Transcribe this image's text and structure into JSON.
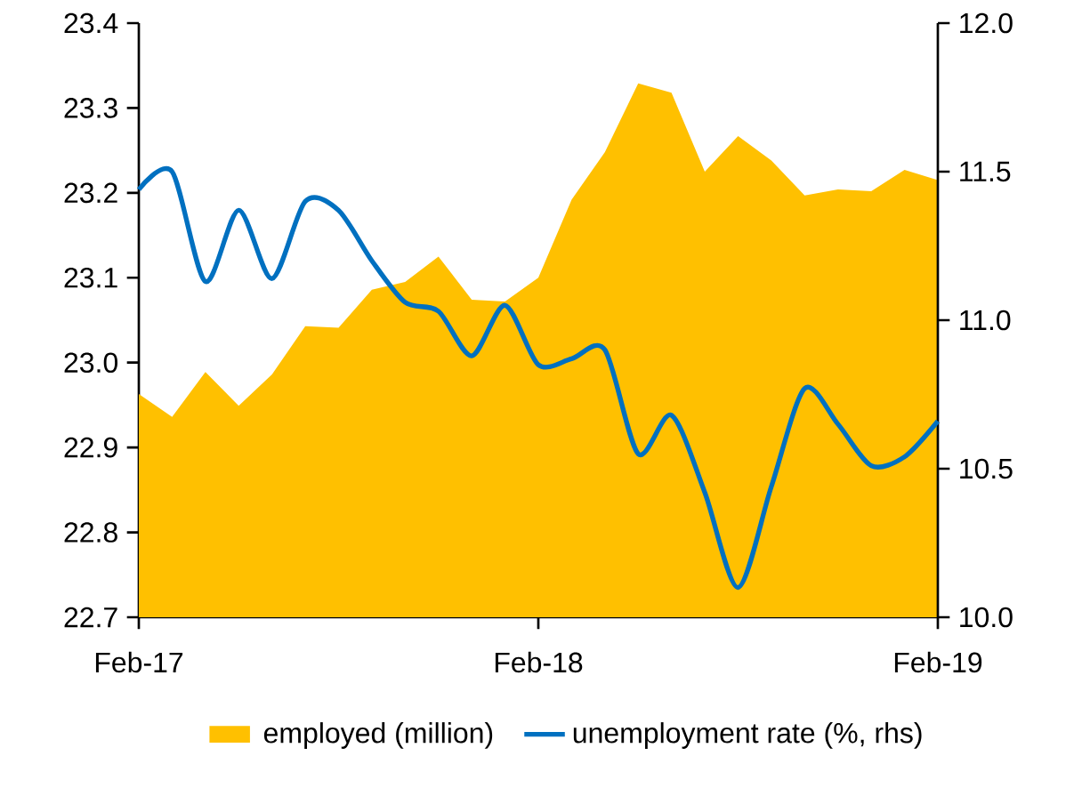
{
  "chart_data": {
    "type": "area",
    "x": [
      "2017-02",
      "2017-03",
      "2017-04",
      "2017-05",
      "2017-06",
      "2017-07",
      "2017-08",
      "2017-09",
      "2017-10",
      "2017-11",
      "2017-12",
      "2018-01",
      "2018-02",
      "2018-03",
      "2018-04",
      "2018-05",
      "2018-06",
      "2018-07",
      "2018-08",
      "2018-09",
      "2018-10",
      "2018-11",
      "2018-12",
      "2019-01",
      "2019-02"
    ],
    "series": [
      {
        "name": "employed (million)",
        "type": "area",
        "color": "#ffc000",
        "values": [
          22.963,
          22.936,
          22.989,
          22.949,
          22.986,
          23.043,
          23.041,
          23.086,
          23.095,
          23.125,
          23.074,
          23.072,
          23.1,
          23.192,
          23.248,
          23.329,
          23.318,
          23.225,
          23.267,
          23.238,
          23.197,
          23.204,
          23.202,
          23.227,
          23.215
        ]
      },
      {
        "name": "unemployment rate (%, rhs)",
        "type": "line",
        "axis": "y2",
        "color": "#0070c0",
        "values": [
          11.44,
          11.5,
          11.13,
          11.37,
          11.14,
          11.4,
          11.37,
          11.2,
          11.06,
          11.03,
          10.88,
          11.05,
          10.85,
          10.87,
          10.9,
          10.55,
          10.68,
          10.42,
          10.1,
          10.44,
          10.77,
          10.65,
          10.51,
          10.54,
          10.66
        ]
      }
    ],
    "xlim": [
      "2017-02",
      "2019-02"
    ],
    "xticks": [
      {
        "value": "2017-02",
        "label": "Feb-17"
      },
      {
        "value": "2018-02",
        "label": "Feb-18"
      },
      {
        "value": "2019-02",
        "label": "Feb-19"
      }
    ],
    "ylim": [
      22.7,
      23.4
    ],
    "yticks": [
      22.7,
      22.8,
      22.9,
      {
        "value": 23.0,
        "label": "23.0"
      },
      23.1,
      23.2,
      23.3,
      23.4
    ],
    "y2lim": [
      10.0,
      12.0
    ],
    "y2ticks": [
      {
        "value": 10.0,
        "label": "10.0"
      },
      {
        "value": 10.5,
        "label": "10.5"
      },
      {
        "value": 11.0,
        "label": "11.0"
      },
      {
        "value": 11.5,
        "label": "11.5"
      },
      {
        "value": 12.0,
        "label": "12.0"
      }
    ],
    "legend": "bottom",
    "grid": false,
    "marker": "none",
    "line_style": "solid"
  }
}
